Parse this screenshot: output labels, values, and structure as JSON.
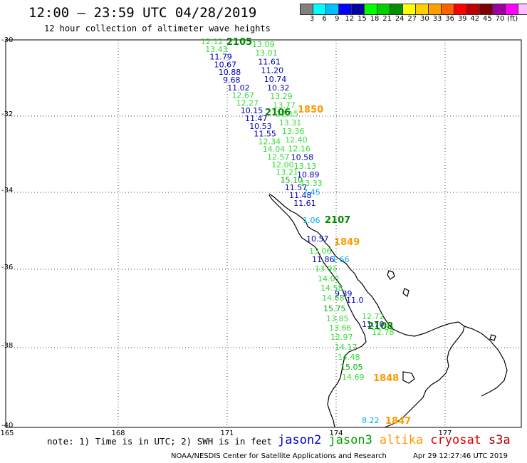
{
  "title": "12:00 — 23:59 UTC 04/28/2019",
  "subtitle": "12 hour collection of altimeter wave heights",
  "color_scale": {
    "colors": [
      "#808080",
      "#00ffff",
      "#00bfff",
      "#0000ff",
      "#0000a0",
      "#00ff00",
      "#00d000",
      "#009000",
      "#ffff00",
      "#ffd000",
      "#ffa000",
      "#ff6000",
      "#ff0000",
      "#c00000",
      "#800000",
      "#a000a0",
      "#ff00ff",
      "#ffc0ff",
      "#000000"
    ],
    "labels": [
      "3",
      "6",
      "9",
      "12",
      "15",
      "18",
      "21",
      "24",
      "27",
      "30",
      "33",
      "36",
      "39",
      "42",
      "45",
      "70",
      "(ft)"
    ]
  },
  "lat_ticks": [
    "-30",
    "-32",
    "-34",
    "-36",
    "-38",
    "-40"
  ],
  "lon_ticks": [
    "165",
    "168",
    "171",
    "174",
    "177"
  ],
  "note": "note: 1) Time is in UTC; 2) SWH is in feet",
  "satellites": [
    {
      "name": "jason2",
      "color": "#0000cc"
    },
    {
      "name": "jason3",
      "color": "#00a000"
    },
    {
      "name": "altika",
      "color": "#ff9900"
    },
    {
      "name": "cryosat",
      "color": "#dd0000"
    },
    {
      "name": "s3a",
      "color": "#aa0000"
    }
  ],
  "footer_left": "NOAA/NESDIS Center for Satellite Applications and Research",
  "footer_right": "Apr 29 12:27:46 UTC 2019",
  "time_labels": [
    {
      "text": "2105",
      "color": "#008800"
    },
    {
      "text": "2106",
      "color": "#008800"
    },
    {
      "text": "1850",
      "color": "#ff9900"
    },
    {
      "text": "2107",
      "color": "#008800"
    },
    {
      "text": "1849",
      "color": "#ff9900"
    },
    {
      "text": "2108",
      "color": "#008800"
    },
    {
      "text": "1848",
      "color": "#ff9900"
    },
    {
      "text": "1847",
      "color": "#ff9900"
    }
  ],
  "track_a": [
    "12.12",
    "13.43",
    "11.79",
    "10.67",
    "10.88",
    "9.68",
    "11.02",
    "12.67",
    "12.27",
    "10.15",
    "11.47",
    "10.53",
    "11.55",
    "12.34",
    "14.04",
    "12.57",
    "12.00",
    "13.21",
    "15.10",
    "11.57",
    "11.48",
    "11.61"
  ],
  "track_b": [
    "13.09",
    "13.01",
    "11.61",
    "11.20",
    "10.74",
    "10.32",
    "13.29",
    "13.77",
    "12.15",
    "13.31",
    "13.36",
    "12.40",
    "12.16",
    "10.58",
    "13.13",
    "10.89",
    "13.33",
    "7.45"
  ],
  "track_c": [
    "1.06",
    "10.57",
    "13.06",
    "11.86",
    "1.66",
    "13.91",
    "14.01",
    "14.58",
    "14.68",
    "15.75",
    "13.85",
    "13.66",
    "12.97",
    "14.17",
    "14.48",
    "15.05",
    "14.69",
    "8.22",
    "9.39",
    "11.0",
    "12.72",
    "11.70",
    "12.78"
  ]
}
